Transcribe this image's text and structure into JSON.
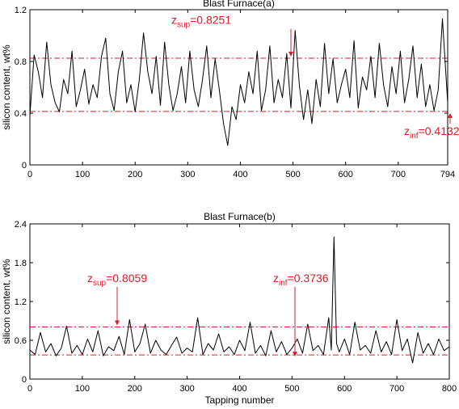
{
  "chart_data": [
    {
      "type": "line",
      "title": "Blast Furnace(a)",
      "ylabel": "silicon content, wt%",
      "xlabel": "",
      "xlim": [
        0,
        794
      ],
      "ylim": [
        0,
        1.2
      ],
      "xticks": [
        "0",
        "100",
        "200",
        "300",
        "400",
        "500",
        "600",
        "700",
        "794"
      ],
      "xtick_values": [
        0,
        100,
        200,
        300,
        400,
        500,
        600,
        700,
        794
      ],
      "yticks": [
        "0",
        "0.4",
        "0.8",
        "1.2"
      ],
      "ytick_values": [
        0,
        0.4,
        0.8,
        1.2
      ],
      "grid": false,
      "series_color": "#000000",
      "threshold_color": "#d4202a",
      "thresholds": [
        {
          "sym": "z",
          "sub": "sup",
          "text": "=0.8251",
          "value": 0.8251,
          "arrow_x": 360,
          "label_x": 212,
          "label_y": 1.09
        },
        {
          "sym": "z",
          "sub": "inf",
          "text": "=0.4132",
          "value": 0.4132,
          "arrow_x": 557,
          "label_x": 500,
          "label_y": 0.23
        }
      ],
      "series": [
        {
          "x": [
            0,
            8,
            16,
            24,
            32,
            40,
            48,
            56,
            64,
            72,
            80,
            88,
            96,
            104,
            112,
            120,
            128,
            136,
            144,
            152,
            160,
            168,
            176,
            184,
            192,
            200,
            208,
            216,
            224,
            232,
            240,
            248,
            256,
            264,
            272,
            280,
            288,
            296,
            304,
            312,
            320,
            328,
            336,
            344,
            352,
            360,
            368,
            376,
            384,
            392,
            400,
            408,
            416,
            424,
            432,
            440,
            448,
            456,
            464,
            472,
            480,
            488,
            496,
            504,
            512,
            520,
            528,
            536,
            544,
            552,
            560,
            568,
            576,
            584,
            592,
            600,
            608,
            616,
            624,
            632,
            640,
            648,
            656,
            664,
            672,
            680,
            688,
            696,
            704,
            712,
            720,
            728,
            736,
            744,
            752,
            760,
            768,
            776,
            784,
            794
          ],
          "y": [
            0.38,
            0.85,
            0.72,
            0.52,
            0.95,
            0.62,
            0.48,
            0.41,
            0.66,
            0.55,
            0.88,
            0.45,
            0.58,
            0.74,
            0.47,
            0.62,
            0.52,
            0.84,
            0.98,
            0.55,
            0.42,
            0.72,
            0.88,
            0.48,
            0.62,
            0.41,
            0.66,
            1.02,
            0.72,
            0.55,
            0.84,
            0.46,
            0.95,
            0.62,
            0.42,
            0.55,
            0.76,
            0.48,
            0.88,
            0.58,
            0.45,
            0.66,
            0.92,
            0.52,
            0.82,
            0.58,
            0.32,
            0.15,
            0.45,
            0.35,
            0.62,
            0.48,
            0.72,
            0.55,
            0.88,
            0.42,
            0.58,
            0.92,
            0.48,
            0.66,
            0.52,
            0.86,
            0.44,
            1.04,
            0.62,
            0.35,
            0.58,
            0.32,
            0.66,
            0.45,
            0.94,
            0.55,
            0.82,
            0.48,
            0.62,
            0.74,
            0.52,
            0.96,
            0.44,
            0.68,
            0.58,
            0.84,
            0.52,
            0.94,
            0.62,
            0.45,
            0.76,
            0.55,
            0.88,
            0.48,
            0.66,
            0.92,
            0.52,
            0.78,
            0.45,
            0.62,
            0.42,
            0.58,
            1.13,
            0.48
          ]
        }
      ]
    },
    {
      "type": "line",
      "title": "Blast Furnace(b)",
      "ylabel": "silicon content, wt%",
      "xlabel": "Tapping number",
      "xlim": [
        0,
        800
      ],
      "ylim": [
        0,
        2.4
      ],
      "xticks": [
        "0",
        "100",
        "200",
        "300",
        "400",
        "500",
        "600",
        "700",
        "800"
      ],
      "xtick_values": [
        0,
        100,
        200,
        300,
        400,
        500,
        600,
        700,
        800
      ],
      "yticks": [
        "0",
        "0.6",
        "1.2",
        "1.8",
        "2.4"
      ],
      "ytick_values": [
        0,
        0.6,
        1.2,
        1.8,
        2.4
      ],
      "grid": false,
      "series_color": "#000000",
      "threshold_color": "#d4202a",
      "thresholds": [
        {
          "sym": "z",
          "sub": "sup",
          "text": "=0.8059",
          "value": 0.8059,
          "arrow_x": 145,
          "label_x": 108,
          "label_y": 1.5
        },
        {
          "sym": "z",
          "sub": "inf",
          "text": "=0.3736",
          "value": 0.3736,
          "arrow_x": 365,
          "label_x": 338,
          "label_y": 1.5
        }
      ],
      "series": [
        {
          "x": [
            0,
            10,
            20,
            30,
            40,
            50,
            60,
            70,
            80,
            90,
            100,
            110,
            120,
            130,
            140,
            150,
            160,
            170,
            180,
            190,
            200,
            210,
            220,
            230,
            240,
            250,
            260,
            270,
            280,
            290,
            300,
            310,
            320,
            330,
            340,
            350,
            360,
            370,
            380,
            390,
            400,
            410,
            420,
            430,
            440,
            450,
            460,
            470,
            480,
            490,
            500,
            510,
            520,
            530,
            540,
            550,
            560,
            570,
            575,
            580,
            585,
            590,
            600,
            610,
            620,
            630,
            640,
            650,
            660,
            670,
            680,
            690,
            700,
            710,
            720,
            730,
            740,
            750,
            760,
            770,
            780,
            790,
            800
          ],
          "y": [
            0.45,
            0.38,
            0.72,
            0.42,
            0.55,
            0.36,
            0.48,
            0.82,
            0.4,
            0.52,
            0.38,
            0.62,
            0.42,
            0.75,
            0.36,
            0.5,
            0.44,
            0.66,
            0.38,
            0.92,
            0.42,
            0.55,
            0.85,
            0.4,
            0.6,
            0.45,
            0.38,
            0.52,
            0.65,
            0.4,
            0.48,
            0.42,
            0.95,
            0.38,
            0.55,
            0.45,
            0.7,
            0.42,
            0.5,
            0.38,
            0.6,
            0.44,
            0.88,
            0.4,
            0.52,
            0.36,
            0.75,
            0.42,
            0.58,
            0.38,
            0.48,
            0.62,
            0.4,
            0.85,
            0.44,
            0.52,
            0.38,
            0.95,
            0.45,
            2.2,
            0.55,
            0.42,
            0.62,
            0.38,
            0.88,
            0.45,
            0.52,
            0.4,
            0.75,
            0.42,
            0.58,
            0.38,
            0.92,
            0.44,
            0.62,
            0.25,
            0.72,
            0.4,
            0.55,
            0.38,
            0.62,
            0.44,
            0.5
          ]
        }
      ]
    }
  ]
}
